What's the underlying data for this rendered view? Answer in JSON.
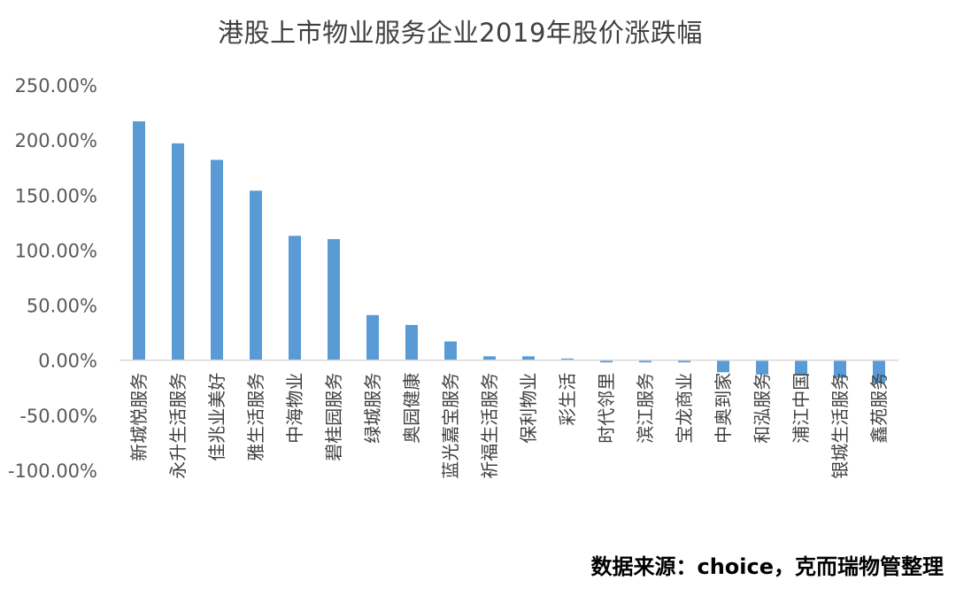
{
  "chart_data": {
    "type": "bar",
    "title": "港股上市物业服务企业2019年股价涨跌幅",
    "source_note": "数据来源：choice，克而瑞物管整理",
    "xlabel": "",
    "ylabel": "",
    "ylim": [
      -100,
      250
    ],
    "yticks": [
      250,
      200,
      150,
      100,
      50,
      0,
      -50,
      -100
    ],
    "ytick_labels": [
      "250.00%",
      "200.00%",
      "150.00%",
      "100.00%",
      "50.00%",
      "0.00%",
      "-50.00%",
      "-100.00%"
    ],
    "grid": false,
    "legend": "none",
    "bar_color": "#5B9BD5",
    "categories": [
      "新城悦服务",
      "永升生活服务",
      "佳兆业美好",
      "雅生活服务",
      "中海物业",
      "碧桂园服务",
      "绿城服务",
      "奥园健康",
      "蓝光嘉宝服务",
      "祈福生活服务",
      "保利物业",
      "彩生活",
      "时代邻里",
      "滨江服务",
      "宝龙商业",
      "中奥到家",
      "和泓服务",
      "浦江中国",
      "银城生活服务",
      "鑫苑服务"
    ],
    "values": [
      217,
      197,
      182,
      154,
      113,
      110,
      41,
      32,
      17,
      3.5,
      3.5,
      1.5,
      -2,
      -2,
      -2,
      -11,
      -13,
      -13,
      -16,
      -21
    ]
  }
}
